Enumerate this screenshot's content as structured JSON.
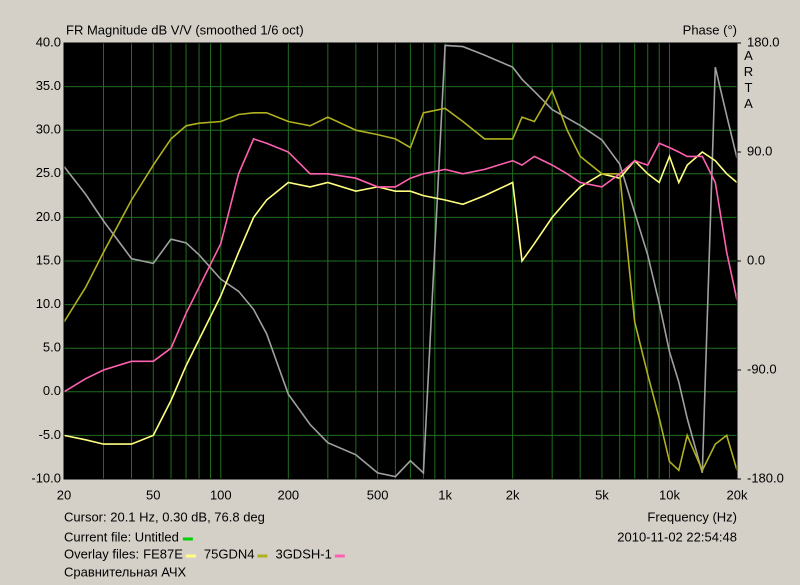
{
  "chart_data": {
    "type": "line",
    "title": "FR Magnitude dB V/V (smoothed 1/6 oct)",
    "y2_label": "Phase (°)",
    "brand": "ARTA",
    "cursor": "Cursor: 20.1 Hz, 0.30 dB, 76.8 deg",
    "x_label": "Frequency (Hz)",
    "timestamp": "2010-11-02  22:54:48",
    "current_file_label": "Current file: Untitled",
    "current_file_color": "#00d000",
    "overlay_label": "Overlay files:",
    "caption": "Сравнительная АЧХ",
    "xscale": "log",
    "grid": true,
    "x": [
      20,
      25,
      30,
      40,
      50,
      60,
      70,
      80,
      100,
      120,
      140,
      160,
      200,
      250,
      300,
      400,
      500,
      600,
      700,
      800,
      1000,
      1200,
      1500,
      2000,
      2200,
      2500,
      3000,
      3500,
      4000,
      5000,
      6000,
      7000,
      8000,
      9000,
      10000,
      11000,
      12000,
      14000,
      16000,
      18000,
      20000
    ],
    "series": [
      {
        "name": "FE87E",
        "color": "#ffff80",
        "values": [
          -5,
          -5.5,
          -6,
          -6,
          -5,
          -1,
          3,
          6,
          11,
          16,
          20,
          22,
          24,
          23.5,
          24,
          23,
          23.5,
          23,
          23,
          22.5,
          22,
          21.5,
          22.5,
          24,
          15,
          17,
          20,
          22,
          23.5,
          25,
          24.5,
          26.5,
          25,
          24,
          27,
          24,
          26,
          27.5,
          26.5,
          25,
          24
        ]
      },
      {
        "name": "75GDN4",
        "color": "#b0b020",
        "values": [
          8,
          12,
          16,
          22,
          26,
          29,
          30.5,
          30.8,
          31,
          31.8,
          32,
          32,
          31,
          30.5,
          31.5,
          30,
          29.5,
          29,
          28,
          32,
          32.5,
          31,
          29,
          29,
          31.5,
          31,
          34.5,
          30,
          27,
          25,
          25,
          8,
          2,
          -3,
          -8,
          -9,
          -5,
          -9,
          -6,
          -5,
          -9
        ]
      },
      {
        "name": "3GDSH-1",
        "color": "#ff60b0",
        "values": [
          0,
          1.5,
          2.5,
          3.5,
          3.5,
          5,
          9,
          12,
          17,
          25,
          29,
          28.5,
          27.5,
          25,
          25,
          24.5,
          23.5,
          23.5,
          24.5,
          25,
          25.5,
          25,
          25.5,
          26.5,
          26,
          27,
          26,
          25,
          24,
          23.5,
          25,
          26.5,
          26,
          28.5,
          28,
          27.5,
          27,
          27,
          24,
          16,
          10.5
        ]
      },
      {
        "color": "#a0a0a0",
        "axis": "y2",
        "values": [
          78,
          55,
          33,
          2,
          -2,
          18,
          15,
          5,
          -15,
          -25,
          -40,
          -60,
          -110,
          -135,
          -150,
          -160,
          -175,
          -178,
          -165,
          -175,
          178,
          177,
          170,
          160,
          150,
          140,
          125,
          118,
          112,
          100,
          80,
          40,
          5,
          -35,
          -75,
          -100,
          -130,
          -175,
          160,
          120,
          85
        ]
      }
    ],
    "xlim": [
      20,
      20000
    ],
    "xticks": [
      20,
      50,
      100,
      200,
      500,
      {
        "value": 1000,
        "label": "1k"
      },
      {
        "value": 2000,
        "label": "2k"
      },
      {
        "value": 5000,
        "label": "5k"
      },
      {
        "value": 10000,
        "label": "10k"
      },
      {
        "value": 20000,
        "label": "20k"
      }
    ],
    "xgrid_minor": [
      30,
      40,
      60,
      70,
      80,
      90,
      300,
      400,
      600,
      700,
      800,
      900,
      3000,
      4000,
      6000,
      7000,
      8000,
      9000
    ],
    "ylim": [
      -10,
      40
    ],
    "yticks": [
      {
        "value": -10,
        "label": "-10.0"
      },
      {
        "value": -5,
        "label": "-5.0"
      },
      {
        "value": 0,
        "label": "0.0"
      },
      {
        "value": 5,
        "label": "5.0"
      },
      {
        "value": 10,
        "label": "10.0"
      },
      {
        "value": 15,
        "label": "15.0"
      },
      {
        "value": 20,
        "label": "20.0"
      },
      {
        "value": 25,
        "label": "25.0"
      },
      {
        "value": 30,
        "label": "30.0"
      },
      {
        "value": 35,
        "label": "35.0"
      },
      {
        "value": 40,
        "label": "40.0"
      }
    ],
    "y2lim": [
      -180,
      180
    ],
    "y2ticks": [
      {
        "value": -180,
        "label": "-180.0"
      },
      {
        "value": -90,
        "label": "-90.0"
      },
      {
        "value": 0,
        "label": "0.0"
      },
      {
        "value": 90,
        "label": "90.0"
      },
      {
        "value": 180,
        "label": "180.0"
      }
    ]
  }
}
